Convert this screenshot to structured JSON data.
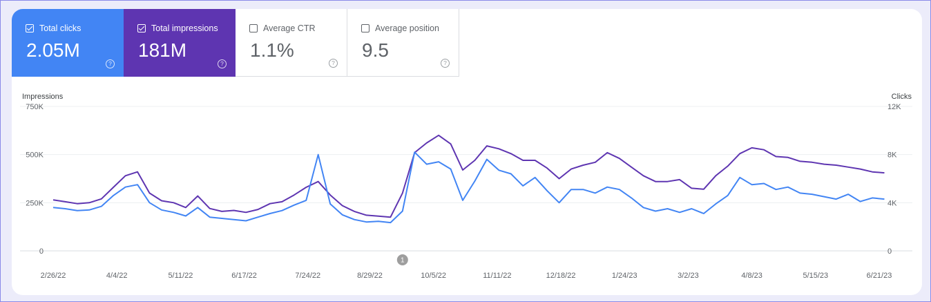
{
  "metrics": [
    {
      "label": "Total clicks",
      "value": "2.05M",
      "checked": true,
      "color": "#4285f4"
    },
    {
      "label": "Total impressions",
      "value": "181M",
      "checked": true,
      "color": "#5e35b1"
    },
    {
      "label": "Average CTR",
      "value": "1.1%",
      "checked": false
    },
    {
      "label": "Average position",
      "value": "9.5",
      "checked": false
    }
  ],
  "help_glyph": "?",
  "chart_data": {
    "type": "line",
    "ylabel_left": "Impressions",
    "ylabel_right": "Clicks",
    "y_left_ticks": [
      "750K",
      "500K",
      "250K",
      "0"
    ],
    "y_right_ticks": [
      "12K",
      "8K",
      "4K",
      "0"
    ],
    "ylim_left": [
      0,
      750000
    ],
    "ylim_right": [
      0,
      12000
    ],
    "x_ticks": [
      "2/26/22",
      "4/4/22",
      "5/11/22",
      "6/17/22",
      "7/24/22",
      "8/29/22",
      "10/5/22",
      "11/11/22",
      "12/18/22",
      "1/24/23",
      "3/2/23",
      "4/8/23",
      "5/15/23",
      "6/21/23"
    ],
    "annotation": {
      "label": "1",
      "date": "9/17/22"
    },
    "grid": true,
    "series": [
      {
        "name": "Impressions",
        "axis": "left",
        "color": "#5e35b1",
        "x": [
          "2/26/22",
          "3/5/22",
          "3/12/22",
          "3/19/22",
          "3/26/22",
          "4/2/22",
          "4/9/22",
          "4/16/22",
          "4/23/22",
          "4/30/22",
          "5/7/22",
          "5/14/22",
          "5/21/22",
          "5/28/22",
          "6/4/22",
          "6/11/22",
          "6/18/22",
          "6/25/22",
          "7/2/22",
          "7/9/22",
          "7/16/22",
          "7/23/22",
          "7/30/22",
          "8/6/22",
          "8/13/22",
          "8/20/22",
          "8/27/22",
          "9/3/22",
          "9/10/22",
          "9/17/22",
          "9/24/22",
          "10/1/22",
          "10/8/22",
          "10/15/22",
          "10/22/22",
          "10/29/22",
          "11/5/22",
          "11/12/22",
          "11/19/22",
          "11/26/22",
          "12/3/22",
          "12/10/22",
          "12/17/22",
          "12/24/22",
          "12/31/22",
          "1/7/23",
          "1/14/23",
          "1/21/23",
          "1/28/23",
          "2/4/23",
          "2/11/23",
          "2/18/23",
          "2/25/23",
          "3/4/23",
          "3/11/23",
          "3/18/23",
          "3/25/23",
          "4/1/23",
          "4/8/23",
          "4/15/23",
          "4/22/23",
          "4/29/23",
          "5/6/23",
          "5/13/23",
          "5/20/23",
          "5/27/23",
          "6/3/23",
          "6/10/23",
          "6/17/23",
          "6/24/23"
        ],
        "values": [
          265000,
          255000,
          245000,
          250000,
          270000,
          330000,
          390000,
          410000,
          300000,
          260000,
          250000,
          225000,
          285000,
          220000,
          205000,
          210000,
          200000,
          215000,
          245000,
          255000,
          290000,
          330000,
          360000,
          290000,
          235000,
          205000,
          185000,
          180000,
          175000,
          300000,
          510000,
          560000,
          600000,
          555000,
          420000,
          470000,
          545000,
          530000,
          505000,
          470000,
          470000,
          430000,
          375000,
          425000,
          445000,
          460000,
          510000,
          480000,
          435000,
          390000,
          360000,
          360000,
          370000,
          325000,
          320000,
          390000,
          440000,
          505000,
          535000,
          525000,
          490000,
          485000,
          465000,
          460000,
          450000,
          445000,
          435000,
          425000,
          410000,
          405000
        ]
      },
      {
        "name": "Clicks",
        "axis": "right",
        "color": "#4285f4",
        "x": [
          "2/26/22",
          "3/5/22",
          "3/12/22",
          "3/19/22",
          "3/26/22",
          "4/2/22",
          "4/9/22",
          "4/16/22",
          "4/23/22",
          "4/30/22",
          "5/7/22",
          "5/14/22",
          "5/21/22",
          "5/28/22",
          "6/4/22",
          "6/11/22",
          "6/18/22",
          "6/25/22",
          "7/2/22",
          "7/9/22",
          "7/16/22",
          "7/23/22",
          "7/30/22",
          "8/6/22",
          "8/13/22",
          "8/20/22",
          "8/27/22",
          "9/3/22",
          "9/10/22",
          "9/17/22",
          "9/24/22",
          "10/1/22",
          "10/8/22",
          "10/15/22",
          "10/22/22",
          "10/29/22",
          "11/5/22",
          "11/12/22",
          "11/19/22",
          "11/26/22",
          "12/3/22",
          "12/10/22",
          "12/17/22",
          "12/24/22",
          "12/31/22",
          "1/7/23",
          "1/14/23",
          "1/21/23",
          "1/28/23",
          "2/4/23",
          "2/11/23",
          "2/18/23",
          "2/25/23",
          "3/4/23",
          "3/11/23",
          "3/18/23",
          "3/25/23",
          "4/1/23",
          "4/8/23",
          "4/15/23",
          "4/22/23",
          "4/29/23",
          "5/6/23",
          "5/13/23",
          "5/20/23",
          "5/27/23",
          "6/3/23",
          "6/10/23",
          "6/17/23",
          "6/24/23"
        ],
        "values": [
          3600,
          3500,
          3350,
          3400,
          3700,
          4600,
          5300,
          5500,
          4000,
          3400,
          3200,
          2900,
          3600,
          2800,
          2700,
          2600,
          2500,
          2800,
          3100,
          3350,
          3800,
          4200,
          8000,
          3900,
          3000,
          2600,
          2400,
          2450,
          2350,
          3300,
          8200,
          7200,
          7400,
          6800,
          4200,
          5800,
          7600,
          6700,
          6400,
          5400,
          6100,
          5000,
          4000,
          5100,
          5100,
          4800,
          5300,
          5100,
          4400,
          3600,
          3300,
          3500,
          3200,
          3500,
          3100,
          3900,
          4600,
          6100,
          5500,
          5600,
          5100,
          5300,
          4800,
          4700,
          4500,
          4300,
          4700,
          4100,
          4400,
          4300
        ]
      }
    ]
  }
}
